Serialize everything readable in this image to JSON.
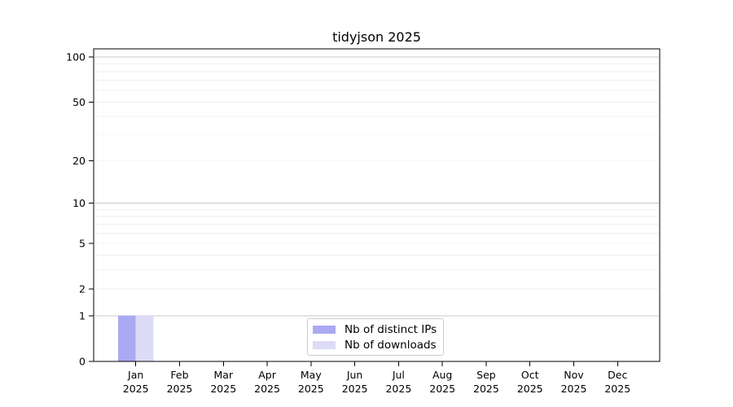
{
  "chart_data": {
    "type": "bar",
    "title": "tidyjson 2025",
    "categories": [
      {
        "line1": "Jan",
        "line2": "2025"
      },
      {
        "line1": "Feb",
        "line2": "2025"
      },
      {
        "line1": "Mar",
        "line2": "2025"
      },
      {
        "line1": "Apr",
        "line2": "2025"
      },
      {
        "line1": "May",
        "line2": "2025"
      },
      {
        "line1": "Jun",
        "line2": "2025"
      },
      {
        "line1": "Jul",
        "line2": "2025"
      },
      {
        "line1": "Aug",
        "line2": "2025"
      },
      {
        "line1": "Sep",
        "line2": "2025"
      },
      {
        "line1": "Oct",
        "line2": "2025"
      },
      {
        "line1": "Nov",
        "line2": "2025"
      },
      {
        "line1": "Dec",
        "line2": "2025"
      }
    ],
    "series": [
      {
        "name": "Nb of distinct IPs",
        "color": "#aaaaf2",
        "values": [
          1,
          0,
          0,
          0,
          0,
          0,
          0,
          0,
          0,
          0,
          0,
          0
        ]
      },
      {
        "name": "Nb of downloads",
        "color": "#dcdcf8",
        "values": [
          1,
          0,
          0,
          0,
          0,
          0,
          0,
          0,
          0,
          0,
          0,
          0
        ]
      }
    ],
    "y_axis": {
      "scale": "log1p",
      "tick_values": [
        0,
        1,
        2,
        5,
        10,
        20,
        50,
        100
      ],
      "tick_labels": [
        "0",
        "1",
        "2",
        "5",
        "10",
        "20",
        "50",
        "100"
      ],
      "major_gridline_values": [
        1,
        10,
        100
      ],
      "minor_gridline_values": [
        2,
        3,
        4,
        5,
        6,
        7,
        8,
        9,
        20,
        30,
        40,
        50,
        60,
        70,
        80,
        90
      ],
      "ylim": [
        0,
        113
      ]
    },
    "legend_position": "bottom-center",
    "grid": true,
    "colors": {
      "major_gridline": "#c8c8c8",
      "minor_gridline": "#efefef",
      "spine": "#000000",
      "text": "#000000",
      "background": "#ffffff"
    }
  }
}
